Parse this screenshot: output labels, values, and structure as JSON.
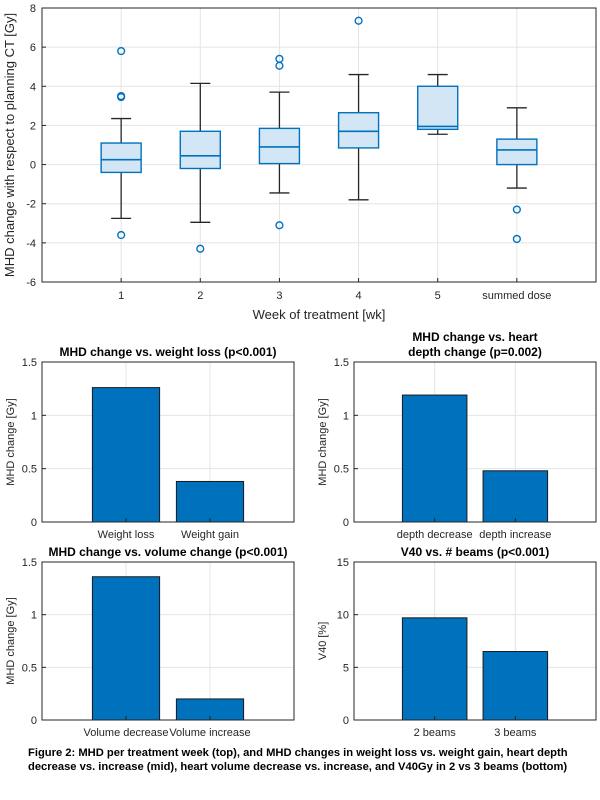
{
  "chart_data": [
    {
      "type": "box",
      "title": "",
      "xlabel": "Week of treatment [wk]",
      "ylabel": "MHD change with respect to planning CT [Gy]",
      "ylim": [
        -6,
        8
      ],
      "yticks": [
        "-6",
        "-4",
        "-2",
        "0",
        "2",
        "4",
        "6",
        "8"
      ],
      "categories": [
        "1",
        "2",
        "3",
        "4",
        "5",
        "summed dose"
      ],
      "boxes": [
        {
          "q1": -0.4,
          "median": 0.25,
          "q3": 1.1,
          "whisker_low": -2.75,
          "whisker_high": 2.35,
          "outliers": [
            5.8,
            3.5,
            3.45,
            -3.6
          ]
        },
        {
          "q1": -0.2,
          "median": 0.45,
          "q3": 1.7,
          "whisker_low": -2.95,
          "whisker_high": 4.15,
          "outliers": [
            -4.3
          ]
        },
        {
          "q1": 0.05,
          "median": 0.9,
          "q3": 1.85,
          "whisker_low": -1.45,
          "whisker_high": 3.7,
          "outliers": [
            5.4,
            5.05,
            -3.1
          ]
        },
        {
          "q1": 0.85,
          "median": 1.7,
          "q3": 2.65,
          "whisker_low": -1.8,
          "whisker_high": 4.6,
          "outliers": [
            7.35
          ]
        },
        {
          "q1": 1.8,
          "median": 1.95,
          "q3": 4.0,
          "whisker_low": 1.55,
          "whisker_high": 4.6,
          "outliers": []
        },
        {
          "q1": 0.0,
          "median": 0.75,
          "q3": 1.3,
          "whisker_low": -1.2,
          "whisker_high": 2.9,
          "outliers": [
            -2.3,
            -3.8
          ]
        }
      ],
      "colors": {
        "box_fill": "#d3e6f5",
        "box_edge": "#0072bd",
        "whisker": "#262626"
      },
      "grid": true
    },
    {
      "type": "bar",
      "title": "MHD change vs. weight loss (p<0.001)",
      "ylabel": "MHD change [Gy]",
      "ylim": [
        0,
        1.5
      ],
      "yticks": [
        "0",
        "0.5",
        "1",
        "1.5"
      ],
      "categories": [
        "Weight loss",
        "Weight gain"
      ],
      "values": [
        1.26,
        0.38
      ],
      "color": "#0072bd",
      "grid": true
    },
    {
      "type": "bar",
      "title": "MHD change vs. heart depth change (p=0.002)",
      "title_lines": [
        "MHD change vs. heart",
        "depth change (p=0.002)"
      ],
      "ylabel": "MHD change [Gy]",
      "ylim": [
        0,
        1.5
      ],
      "yticks": [
        "0",
        "0.5",
        "1",
        "1.5"
      ],
      "categories": [
        "depth decrease",
        "depth increase"
      ],
      "values": [
        1.19,
        0.48
      ],
      "color": "#0072bd",
      "grid": true
    },
    {
      "type": "bar",
      "title": "MHD change vs. volume change (p<0.001)",
      "ylabel": "MHD change [Gy]",
      "ylim": [
        0,
        1.5
      ],
      "yticks": [
        "0",
        "0.5",
        "1",
        "1.5"
      ],
      "categories": [
        "Volume decrease",
        "Volume increase"
      ],
      "values": [
        1.36,
        0.2
      ],
      "color": "#0072bd",
      "grid": true
    },
    {
      "type": "bar",
      "title": "V40 vs. # beams (p<0.001)",
      "ylabel": "V40 [%]",
      "ylim": [
        0,
        15
      ],
      "yticks": [
        "0",
        "5",
        "10",
        "15"
      ],
      "categories": [
        "2 beams",
        "3 beams"
      ],
      "values": [
        9.7,
        6.5
      ],
      "color": "#0072bd",
      "grid": true
    }
  ],
  "caption": "Figure 2: MHD per treatment week (top), and MHD changes in weight loss vs. weight gain, heart depth decrease vs. increase (mid), heart volume decrease vs. increase, and V40Gy in 2 vs 3 beams (bottom)"
}
